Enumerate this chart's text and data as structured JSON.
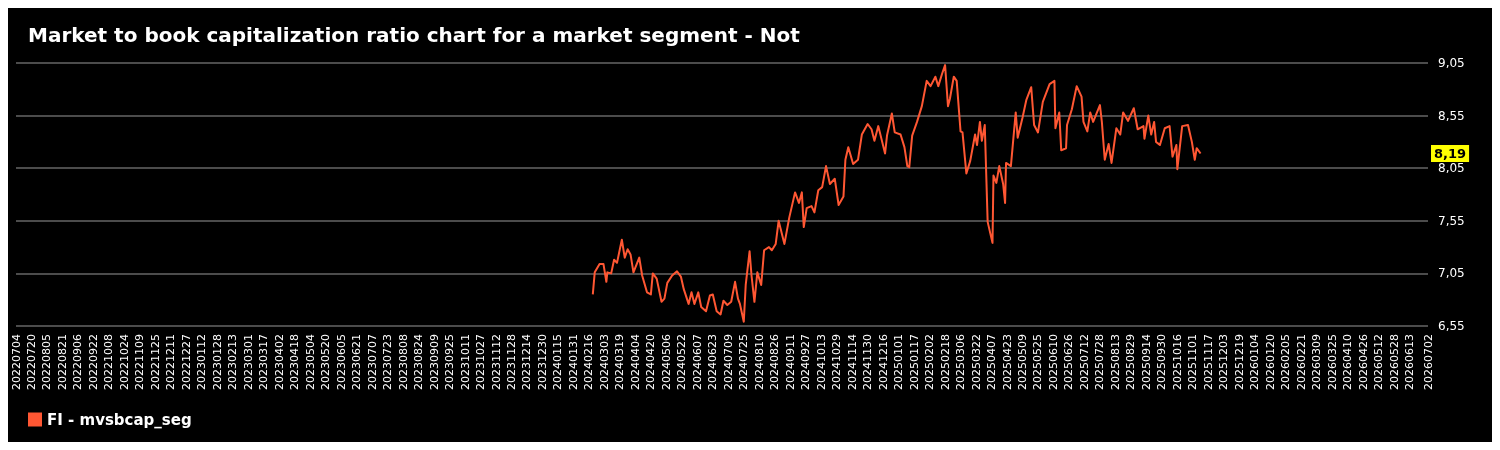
{
  "chart_data": {
    "type": "line",
    "title": "Market to book capitalization ratio chart for a market segment - Not",
    "xlim": [
      "2022-07-04",
      "2026-07-02"
    ],
    "ylim": [
      6.55,
      9.05
    ],
    "yticks": [
      {
        "value": 6.55,
        "label": "6,55"
      },
      {
        "value": 7.05,
        "label": "7,05"
      },
      {
        "value": 7.55,
        "label": "7,55"
      },
      {
        "value": 8.05,
        "label": "8,05"
      },
      {
        "value": 8.55,
        "label": "8,55"
      },
      {
        "value": 9.05,
        "label": "9,05"
      }
    ],
    "xticks": [
      {
        "value": "2022-07-04",
        "label": "20220704"
      },
      {
        "value": "2022-07-20",
        "label": "20220720"
      },
      {
        "value": "2022-08-05",
        "label": "20220805"
      },
      {
        "value": "2022-08-21",
        "label": "20220821"
      },
      {
        "value": "2022-09-06",
        "label": "20220906"
      },
      {
        "value": "2022-09-22",
        "label": "20220922"
      },
      {
        "value": "2022-10-08",
        "label": "20221008"
      },
      {
        "value": "2022-10-24",
        "label": "20221024"
      },
      {
        "value": "2022-11-09",
        "label": "20221109"
      },
      {
        "value": "2022-11-25",
        "label": "20221125"
      },
      {
        "value": "2022-12-11",
        "label": "20221211"
      },
      {
        "value": "2022-12-27",
        "label": "20221227"
      },
      {
        "value": "2023-01-12",
        "label": "20230112"
      },
      {
        "value": "2023-01-28",
        "label": "20230128"
      },
      {
        "value": "2023-02-13",
        "label": "20230213"
      },
      {
        "value": "2023-03-01",
        "label": "20230301"
      },
      {
        "value": "2023-03-17",
        "label": "20230317"
      },
      {
        "value": "2023-04-02",
        "label": "20230402"
      },
      {
        "value": "2023-04-18",
        "label": "20230418"
      },
      {
        "value": "2023-05-04",
        "label": "20230504"
      },
      {
        "value": "2023-05-20",
        "label": "20230520"
      },
      {
        "value": "2023-06-05",
        "label": "20230605"
      },
      {
        "value": "2023-06-21",
        "label": "20230621"
      },
      {
        "value": "2023-07-07",
        "label": "20230707"
      },
      {
        "value": "2023-07-23",
        "label": "20230723"
      },
      {
        "value": "2023-08-08",
        "label": "20230808"
      },
      {
        "value": "2023-08-24",
        "label": "20230824"
      },
      {
        "value": "2023-09-09",
        "label": "20230909"
      },
      {
        "value": "2023-09-25",
        "label": "20230925"
      },
      {
        "value": "2023-10-11",
        "label": "20231011"
      },
      {
        "value": "2023-10-27",
        "label": "20231027"
      },
      {
        "value": "2023-11-12",
        "label": "20231112"
      },
      {
        "value": "2023-11-28",
        "label": "20231128"
      },
      {
        "value": "2023-12-14",
        "label": "20231214"
      },
      {
        "value": "2023-12-30",
        "label": "20231230"
      },
      {
        "value": "2024-01-15",
        "label": "20240115"
      },
      {
        "value": "2024-01-31",
        "label": "20240131"
      },
      {
        "value": "2024-02-16",
        "label": "20240216"
      },
      {
        "value": "2024-03-03",
        "label": "20240303"
      },
      {
        "value": "2024-03-19",
        "label": "20240319"
      },
      {
        "value": "2024-04-04",
        "label": "20240404"
      },
      {
        "value": "2024-04-20",
        "label": "20240420"
      },
      {
        "value": "2024-05-06",
        "label": "20240506"
      },
      {
        "value": "2024-05-22",
        "label": "20240522"
      },
      {
        "value": "2024-06-07",
        "label": "20240607"
      },
      {
        "value": "2024-06-23",
        "label": "20240623"
      },
      {
        "value": "2024-07-09",
        "label": "20240709"
      },
      {
        "value": "2024-07-25",
        "label": "20240725"
      },
      {
        "value": "2024-08-10",
        "label": "20240810"
      },
      {
        "value": "2024-08-26",
        "label": "20240826"
      },
      {
        "value": "2024-09-11",
        "label": "20240911"
      },
      {
        "value": "2024-09-27",
        "label": "20240927"
      },
      {
        "value": "2024-10-13",
        "label": "20241013"
      },
      {
        "value": "2024-10-29",
        "label": "20241029"
      },
      {
        "value": "2024-11-14",
        "label": "20241114"
      },
      {
        "value": "2024-11-30",
        "label": "20241130"
      },
      {
        "value": "2024-12-16",
        "label": "20241216"
      },
      {
        "value": "2025-01-01",
        "label": "20250101"
      },
      {
        "value": "2025-01-17",
        "label": "20250117"
      },
      {
        "value": "2025-02-02",
        "label": "20250202"
      },
      {
        "value": "2025-02-18",
        "label": "20250218"
      },
      {
        "value": "2025-03-06",
        "label": "20250306"
      },
      {
        "value": "2025-03-22",
        "label": "20250322"
      },
      {
        "value": "2025-04-07",
        "label": "20250407"
      },
      {
        "value": "2025-04-23",
        "label": "20250423"
      },
      {
        "value": "2025-05-09",
        "label": "20250509"
      },
      {
        "value": "2025-05-25",
        "label": "20250525"
      },
      {
        "value": "2025-06-10",
        "label": "20250610"
      },
      {
        "value": "2025-06-26",
        "label": "20250626"
      },
      {
        "value": "2025-07-12",
        "label": "20250712"
      },
      {
        "value": "2025-07-28",
        "label": "20250728"
      },
      {
        "value": "2025-08-13",
        "label": "20250813"
      },
      {
        "value": "2025-08-29",
        "label": "20250829"
      },
      {
        "value": "2025-09-14",
        "label": "20250914"
      },
      {
        "value": "2025-09-30",
        "label": "20250930"
      },
      {
        "value": "2025-10-16",
        "label": "20251016"
      },
      {
        "value": "2025-11-01",
        "label": "20251101"
      },
      {
        "value": "2025-11-17",
        "label": "20251117"
      },
      {
        "value": "2025-12-03",
        "label": "20251203"
      },
      {
        "value": "2025-12-19",
        "label": "20251219"
      },
      {
        "value": "2026-01-04",
        "label": "20260104"
      },
      {
        "value": "2026-01-20",
        "label": "20260120"
      },
      {
        "value": "2026-02-05",
        "label": "20260205"
      },
      {
        "value": "2026-02-21",
        "label": "20260221"
      },
      {
        "value": "2026-03-09",
        "label": "20260309"
      },
      {
        "value": "2026-03-25",
        "label": "20260325"
      },
      {
        "value": "2026-04-10",
        "label": "20260410"
      },
      {
        "value": "2026-04-26",
        "label": "20260426"
      },
      {
        "value": "2026-05-12",
        "label": "20260512"
      },
      {
        "value": "2026-05-28",
        "label": "20260528"
      },
      {
        "value": "2026-06-13",
        "label": "20260613"
      },
      {
        "value": "2026-07-02",
        "label": "20260702"
      }
    ],
    "x": [
      "2024-02-20",
      "2024-02-22",
      "2024-02-27",
      "2024-03-02",
      "2024-03-05",
      "2024-03-06",
      "2024-03-10",
      "2024-03-13",
      "2024-03-16",
      "2024-03-21",
      "2024-03-24",
      "2024-03-27",
      "2024-03-30",
      "2024-04-02",
      "2024-04-08",
      "2024-04-11",
      "2024-04-16",
      "2024-04-20",
      "2024-04-22",
      "2024-04-26",
      "2024-05-01",
      "2024-05-04",
      "2024-05-07",
      "2024-05-12",
      "2024-05-17",
      "2024-05-21",
      "2024-05-24",
      "2024-05-29",
      "2024-06-01",
      "2024-06-04",
      "2024-06-08",
      "2024-06-11",
      "2024-06-16",
      "2024-06-20",
      "2024-06-23",
      "2024-06-27",
      "2024-07-01",
      "2024-07-04",
      "2024-07-08",
      "2024-07-12",
      "2024-07-16",
      "2024-07-19",
      "2024-07-21",
      "2024-07-25",
      "2024-07-27",
      "2024-07-31",
      "2024-08-02",
      "2024-08-05",
      "2024-08-08",
      "2024-08-12",
      "2024-08-15",
      "2024-08-20",
      "2024-08-23",
      "2024-08-27",
      "2024-08-30",
      "2024-09-05",
      "2024-09-10",
      "2024-09-16",
      "2024-09-20",
      "2024-09-23",
      "2024-09-25",
      "2024-09-28",
      "2024-10-03",
      "2024-10-06",
      "2024-10-10",
      "2024-10-14",
      "2024-10-18",
      "2024-10-22",
      "2024-10-27",
      "2024-10-31",
      "2024-11-05",
      "2024-11-07",
      "2024-11-10",
      "2024-11-15",
      "2024-11-20",
      "2024-11-24",
      "2024-11-30",
      "2024-12-04",
      "2024-12-07",
      "2024-12-11",
      "2024-12-18",
      "2024-12-20",
      "2024-12-25",
      "2024-12-28",
      "2025-01-03",
      "2025-01-07",
      "2025-01-10",
      "2025-01-12",
      "2025-01-15",
      "2025-01-20",
      "2025-01-25",
      "2025-01-30",
      "2025-02-03",
      "2025-02-08",
      "2025-02-11",
      "2025-02-15",
      "2025-02-18",
      "2025-02-21",
      "2025-02-23",
      "2025-02-27",
      "2025-03-02",
      "2025-03-06",
      "2025-03-08",
      "2025-03-12",
      "2025-03-16",
      "2025-03-21",
      "2025-03-23",
      "2025-03-26",
      "2025-03-28",
      "2025-03-31",
      "2025-04-03",
      "2025-04-08",
      "2025-04-09",
      "2025-04-12",
      "2025-04-15",
      "2025-04-19",
      "2025-04-21",
      "2025-04-22",
      "2025-04-27",
      "2025-05-02",
      "2025-05-04",
      "2025-05-09",
      "2025-05-13",
      "2025-05-18",
      "2025-05-21",
      "2025-05-25",
      "2025-05-30",
      "2025-06-06",
      "2025-06-11",
      "2025-06-12",
      "2025-06-16",
      "2025-06-18",
      "2025-06-23",
      "2025-06-24",
      "2025-06-29",
      "2025-07-04",
      "2025-07-09",
      "2025-07-11",
      "2025-07-15",
      "2025-07-18",
      "2025-07-21",
      "2025-07-28",
      "2025-07-30",
      "2025-08-02",
      "2025-08-06",
      "2025-08-09",
      "2025-08-14",
      "2025-08-18",
      "2025-08-21",
      "2025-08-26",
      "2025-09-01",
      "2025-09-05",
      "2025-09-11",
      "2025-09-12",
      "2025-09-16",
      "2025-09-19",
      "2025-09-22",
      "2025-09-24",
      "2025-09-28",
      "2025-10-03",
      "2025-10-08",
      "2025-10-11",
      "2025-10-15",
      "2025-10-16",
      "2025-10-21",
      "2025-10-27",
      "2025-10-31",
      "2025-11-03",
      "2025-11-05",
      "2025-11-09"
    ],
    "series": [
      {
        "name": "FI - mvsbcap_seg",
        "color": "#ff5733",
        "values": [
          6.85,
          7.06,
          7.14,
          7.14,
          6.97,
          7.06,
          7.05,
          7.18,
          7.15,
          7.37,
          7.2,
          7.28,
          7.23,
          7.06,
          7.2,
          7.03,
          6.87,
          6.85,
          7.05,
          7.0,
          6.78,
          6.81,
          6.96,
          7.03,
          7.07,
          7.02,
          6.9,
          6.76,
          6.87,
          6.76,
          6.87,
          6.73,
          6.69,
          6.84,
          6.85,
          6.69,
          6.66,
          6.79,
          6.75,
          6.78,
          6.97,
          6.81,
          6.76,
          6.59,
          6.94,
          7.26,
          7.03,
          6.78,
          7.06,
          6.94,
          7.27,
          7.3,
          7.27,
          7.33,
          7.55,
          7.33,
          7.58,
          7.82,
          7.72,
          7.82,
          7.49,
          7.67,
          7.69,
          7.63,
          7.84,
          7.87,
          8.07,
          7.9,
          7.95,
          7.7,
          7.78,
          8.13,
          8.25,
          8.09,
          8.13,
          8.37,
          8.47,
          8.42,
          8.31,
          8.45,
          8.19,
          8.36,
          8.57,
          8.39,
          8.37,
          8.25,
          8.07,
          8.06,
          8.36,
          8.49,
          8.64,
          8.88,
          8.83,
          8.92,
          8.83,
          8.95,
          9.03,
          8.64,
          8.71,
          8.92,
          8.88,
          8.4,
          8.39,
          8.0,
          8.12,
          8.37,
          8.27,
          8.49,
          8.31,
          8.46,
          7.54,
          7.34,
          7.98,
          7.91,
          8.07,
          7.9,
          7.72,
          8.1,
          8.07,
          8.58,
          8.34,
          8.53,
          8.7,
          8.82,
          8.46,
          8.39,
          8.68,
          8.85,
          8.88,
          8.43,
          8.58,
          8.22,
          8.24,
          8.46,
          8.61,
          8.83,
          8.73,
          8.49,
          8.4,
          8.58,
          8.49,
          8.65,
          8.49,
          8.13,
          8.28,
          8.1,
          8.43,
          8.37,
          8.58,
          8.5,
          8.62,
          8.42,
          8.45,
          8.33,
          8.55,
          8.37,
          8.49,
          8.3,
          8.27,
          8.43,
          8.45,
          8.16,
          8.27,
          8.04,
          8.45,
          8.46,
          8.3,
          8.13,
          8.24,
          8.19
        ]
      }
    ],
    "annotations": [
      {
        "text": "8,19",
        "y": 8.19
      }
    ],
    "grid": "y",
    "legend": "bottom left",
    "marker": "none",
    "line_style": "solid"
  }
}
